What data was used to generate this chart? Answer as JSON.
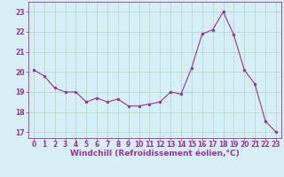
{
  "x": [
    0,
    1,
    2,
    3,
    4,
    5,
    6,
    7,
    8,
    9,
    10,
    11,
    12,
    13,
    14,
    15,
    16,
    17,
    18,
    19,
    20,
    21,
    22,
    23
  ],
  "y": [
    20.1,
    19.8,
    19.2,
    19.0,
    19.0,
    18.5,
    18.7,
    18.5,
    18.65,
    18.3,
    18.3,
    18.4,
    18.5,
    19.0,
    18.9,
    20.2,
    21.9,
    22.1,
    23.0,
    21.85,
    20.1,
    19.4,
    17.55,
    17.0
  ],
  "xlabel": "Windchill (Refroidissement éolien,°C)",
  "ylim": [
    16.7,
    23.5
  ],
  "yticks": [
    17,
    18,
    19,
    20,
    21,
    22,
    23
  ],
  "xticks": [
    0,
    1,
    2,
    3,
    4,
    5,
    6,
    7,
    8,
    9,
    10,
    11,
    12,
    13,
    14,
    15,
    16,
    17,
    18,
    19,
    20,
    21,
    22,
    23
  ],
  "line_color": "#993399",
  "marker": "o",
  "marker_size": 2,
  "background_color": "#d6eef5",
  "grid_color": "#b0d4c8",
  "tick_fontsize": 5.5,
  "xlabel_fontsize": 6.5
}
